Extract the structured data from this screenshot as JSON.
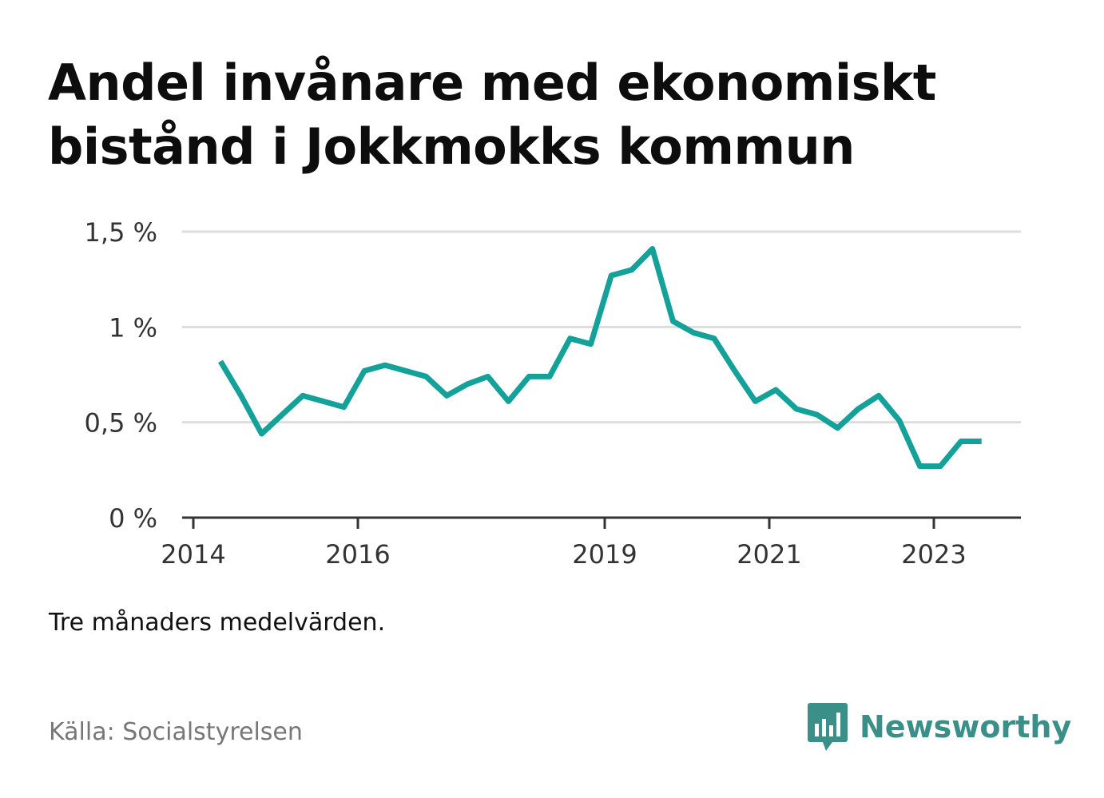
{
  "title": "Andel invånare med ekonomiskt bistånd i Jokkmokks kommun",
  "note": "Tre månaders medelvärden.",
  "source": "Källa: Socialstyrelsen",
  "brand": {
    "name": "Newsworthy",
    "icon": "bar-chart-speech-bubble-icon",
    "color": "#3a8f88"
  },
  "colors": {
    "line": "#14a199",
    "grid": "#dddddd",
    "axis": "#333333"
  },
  "chart_data": {
    "type": "line",
    "title": "Andel invånare med ekonomiskt bistånd i Jokkmokks kommun",
    "xlabel": "",
    "ylabel": "",
    "ylim": [
      0,
      1.5
    ],
    "xlim": [
      2014,
      2024
    ],
    "grid": true,
    "legend": "none",
    "y_ticks": [
      {
        "value": 0,
        "label": "0 %"
      },
      {
        "value": 0.5,
        "label": "0,5 %"
      },
      {
        "value": 1,
        "label": "1 %"
      },
      {
        "value": 1.5,
        "label": "1,5 %"
      }
    ],
    "x_ticks": [
      {
        "value": 2014,
        "label": "2014"
      },
      {
        "value": 2016,
        "label": "2016"
      },
      {
        "value": 2019,
        "label": "2019"
      },
      {
        "value": 2021,
        "label": "2021"
      },
      {
        "value": 2023,
        "label": "2023"
      }
    ],
    "series": [
      {
        "x": [
          2014.33,
          2014.58,
          2014.83,
          2015.08,
          2015.33,
          2015.58,
          2015.83,
          2016.08,
          2016.33,
          2016.58,
          2016.83,
          2017.08,
          2017.33,
          2017.58,
          2017.83,
          2018.08,
          2018.33,
          2018.58,
          2018.83,
          2019.08,
          2019.33,
          2019.58,
          2019.83,
          2020.08,
          2020.33,
          2020.58,
          2020.83,
          2021.08,
          2021.33,
          2021.58,
          2021.83,
          2022.08,
          2022.33,
          2022.58,
          2022.83,
          2023.08,
          2023.33,
          2023.58
        ],
        "values": [
          0.82,
          0.64,
          0.44,
          0.54,
          0.64,
          0.61,
          0.58,
          0.77,
          0.8,
          0.77,
          0.74,
          0.64,
          0.7,
          0.74,
          0.61,
          0.74,
          0.74,
          0.94,
          0.91,
          1.27,
          1.3,
          1.41,
          1.03,
          0.97,
          0.94,
          0.77,
          0.61,
          0.67,
          0.57,
          0.54,
          0.47,
          0.57,
          0.64,
          0.51,
          0.27,
          0.27,
          0.4,
          0.4
        ]
      }
    ]
  }
}
